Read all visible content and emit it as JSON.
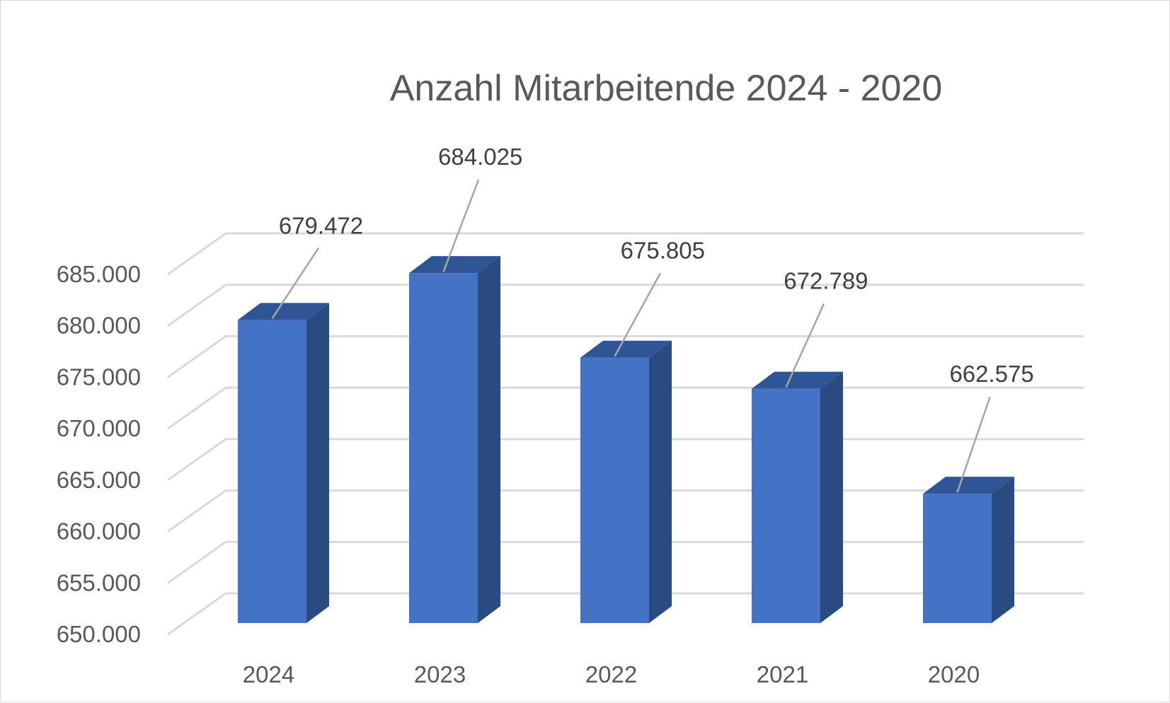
{
  "chart_data": {
    "type": "bar",
    "title": "Anzahl Mitarbeitende 2024 - 2020",
    "xlabel": "",
    "ylabel": "",
    "categories": [
      "2024",
      "2023",
      "2022",
      "2021",
      "2020"
    ],
    "values": [
      679472,
      684025,
      675805,
      672789,
      662575
    ],
    "data_labels": [
      "679.472",
      "684.025",
      "675.805",
      "672.789",
      "662.575"
    ],
    "ylim": [
      650000,
      685000
    ],
    "yticks": [
      650000,
      655000,
      660000,
      665000,
      670000,
      675000,
      680000,
      685000
    ],
    "ytick_labels": [
      "650.000",
      "655.000",
      "660.000",
      "665.000",
      "670.000",
      "675.000",
      "680.000",
      "685.000"
    ],
    "grid": true,
    "legend": "none",
    "style": "3d-column",
    "colors": {
      "front": "#4472C4",
      "side": "#2A4A82",
      "top": "#2F5597"
    }
  }
}
